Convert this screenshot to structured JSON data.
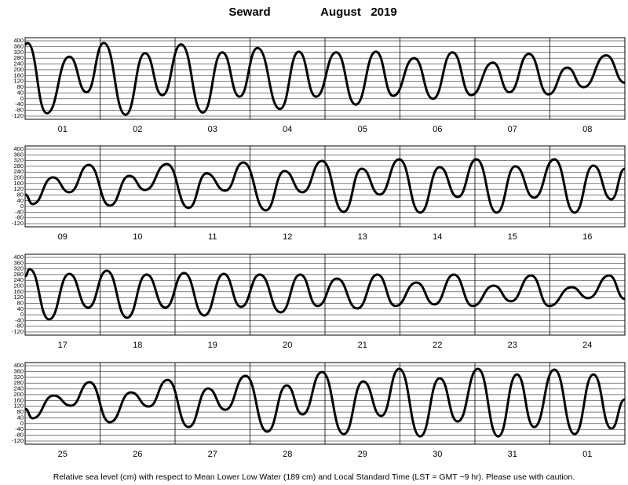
{
  "header": {
    "station": "Seward",
    "month": "August",
    "year": "2019"
  },
  "footer": "Relative sea level (cm) with respect to Mean Lower Low Water (189 cm) and Local Standard Time (LST = GMT −9 hr). Please use with caution.",
  "chart_data": [
    {
      "type": "line",
      "xlim": [
        0,
        8
      ],
      "ylim": [
        -120,
        400
      ],
      "yticks": [
        400,
        360,
        320,
        280,
        240,
        200,
        160,
        120,
        80,
        40,
        0,
        -40,
        -80,
        -120
      ],
      "xticks": [
        {
          "value": 0,
          "label": "01"
        },
        {
          "value": 1,
          "label": "02"
        },
        {
          "value": 2,
          "label": "03"
        },
        {
          "value": 3,
          "label": "04"
        },
        {
          "value": 4,
          "label": "05"
        },
        {
          "value": 5,
          "label": "06"
        },
        {
          "value": 6,
          "label": "07"
        },
        {
          "value": 7,
          "label": "08"
        }
      ],
      "grid": true,
      "series": [
        {
          "color": "#000000",
          "x": [
            0,
            0.03,
            0.29,
            0.59,
            0.82,
            1.05,
            1.34,
            1.6,
            1.83,
            2.08,
            2.37,
            2.63,
            2.86,
            3.1,
            3.4,
            3.65,
            3.88,
            4.15,
            4.41,
            4.68,
            4.91,
            5.19,
            5.44,
            5.7,
            5.95,
            6.24,
            6.46,
            6.72,
            6.98,
            7.23,
            7.45,
            7.75,
            8
          ],
          "values": [
            375,
            385,
            -100,
            290,
            45,
            385,
            -110,
            315,
            25,
            375,
            -95,
            320,
            15,
            350,
            -70,
            325,
            15,
            320,
            -40,
            325,
            20,
            280,
            0,
            320,
            25,
            250,
            45,
            310,
            30,
            215,
            80,
            300,
            110
          ]
        }
      ]
    },
    {
      "type": "line",
      "xlim": [
        8,
        16
      ],
      "ylim": [
        -120,
        400
      ],
      "yticks": [
        400,
        360,
        320,
        280,
        240,
        200,
        160,
        120,
        80,
        40,
        0,
        -40,
        -80,
        -120
      ],
      "xticks": [
        {
          "value": 8,
          "label": "09"
        },
        {
          "value": 9,
          "label": "10"
        },
        {
          "value": 10,
          "label": "11"
        },
        {
          "value": 11,
          "label": "12"
        },
        {
          "value": 12,
          "label": "13"
        },
        {
          "value": 13,
          "label": "14"
        },
        {
          "value": 14,
          "label": "15"
        },
        {
          "value": 15,
          "label": "16"
        }
      ],
      "grid": true,
      "series": [
        {
          "color": "#000000",
          "x": [
            8,
            8.1,
            8.37,
            8.59,
            8.85,
            9.13,
            9.39,
            9.6,
            9.89,
            10.18,
            10.42,
            10.67,
            10.91,
            11.21,
            11.46,
            11.7,
            11.96,
            12.25,
            12.49,
            12.73,
            12.99,
            13.27,
            13.53,
            13.77,
            14.02,
            14.29,
            14.54,
            14.79,
            15.06,
            15.33,
            15.58,
            15.82,
            16
          ],
          "values": [
            83,
            17,
            203,
            99,
            290,
            6,
            214,
            115,
            296,
            -10,
            230,
            110,
            307,
            -27,
            247,
            99,
            318,
            -38,
            263,
            83,
            329,
            -43,
            274,
            66,
            329,
            -43,
            280,
            61,
            329,
            -43,
            285,
            50,
            263
          ]
        }
      ]
    },
    {
      "type": "line",
      "xlim": [
        16,
        24
      ],
      "ylim": [
        -120,
        400
      ],
      "yticks": [
        400,
        360,
        320,
        280,
        240,
        200,
        160,
        120,
        80,
        40,
        0,
        -40,
        -80,
        -120
      ],
      "xticks": [
        {
          "value": 16,
          "label": "17"
        },
        {
          "value": 17,
          "label": "18"
        },
        {
          "value": 18,
          "label": "19"
        },
        {
          "value": 19,
          "label": "20"
        },
        {
          "value": 20,
          "label": "21"
        },
        {
          "value": 21,
          "label": "22"
        },
        {
          "value": 22,
          "label": "23"
        },
        {
          "value": 23,
          "label": "24"
        }
      ],
      "grid": true,
      "series": [
        {
          "color": "#000000",
          "x": [
            16,
            16.06,
            16.32,
            16.59,
            16.84,
            17.09,
            17.36,
            17.62,
            17.87,
            18.12,
            18.39,
            18.65,
            18.88,
            19.13,
            19.41,
            19.67,
            19.9,
            20.16,
            20.43,
            20.7,
            20.94,
            21.22,
            21.46,
            21.72,
            21.97,
            22.25,
            22.48,
            22.75,
            22.99,
            23.29,
            23.51,
            23.79,
            24
          ],
          "values": [
            269,
            318,
            -32,
            285,
            50,
            307,
            -21,
            280,
            50,
            291,
            -5,
            285,
            55,
            280,
            17,
            280,
            61,
            252,
            44,
            280,
            61,
            225,
            72,
            280,
            61,
            203,
            94,
            274,
            61,
            192,
            116,
            274,
            110
          ]
        }
      ]
    },
    {
      "type": "line",
      "xlim": [
        24,
        32
      ],
      "ylim": [
        -120,
        400
      ],
      "yticks": [
        400,
        360,
        320,
        280,
        240,
        200,
        160,
        120,
        80,
        40,
        0,
        -40,
        -80,
        -120
      ],
      "xticks": [
        {
          "value": 24,
          "label": "25"
        },
        {
          "value": 25,
          "label": "26"
        },
        {
          "value": 26,
          "label": "27"
        },
        {
          "value": 27,
          "label": "28"
        },
        {
          "value": 28,
          "label": "29"
        },
        {
          "value": 29,
          "label": "30"
        },
        {
          "value": 30,
          "label": "31"
        },
        {
          "value": 31,
          "label": "01"
        }
      ],
      "grid": true,
      "series": [
        {
          "color": "#000000",
          "x": [
            24,
            24.1,
            24.38,
            24.61,
            24.86,
            25.13,
            25.41,
            25.65,
            25.9,
            26.18,
            26.44,
            26.67,
            26.94,
            27.23,
            27.49,
            27.7,
            27.96,
            28.25,
            28.51,
            28.75,
            28.99,
            29.27,
            29.53,
            29.77,
            30.04,
            30.31,
            30.56,
            30.79,
            31.06,
            31.33,
            31.58,
            31.82,
            32
          ],
          "values": [
            102,
            37,
            194,
            124,
            286,
            10,
            216,
            118,
            302,
            -23,
            243,
            96,
            330,
            -55,
            264,
            64,
            357,
            -72,
            292,
            53,
            378,
            -88,
            313,
            15,
            378,
            -88,
            340,
            -23,
            373,
            -72,
            340,
            -34,
            167
          ]
        }
      ]
    }
  ]
}
